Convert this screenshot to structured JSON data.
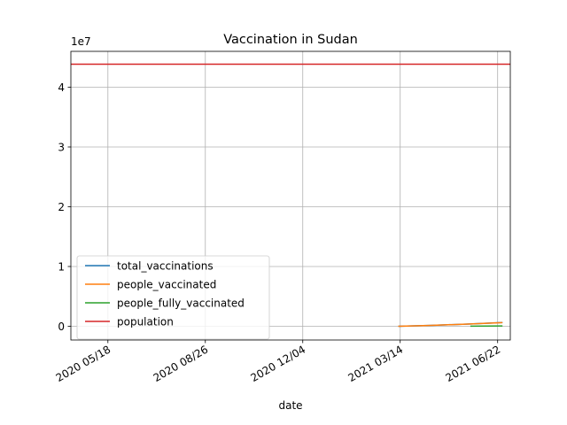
{
  "chart_data": {
    "type": "line",
    "title": "Vaccination in Sudan",
    "xlabel": "date",
    "ylabel": "",
    "y_offset_label": "1e7",
    "x_axis": "date",
    "xlim": [
      "2020-04-10",
      "2021-07-05"
    ],
    "ylim": [
      -2300000,
      46000000
    ],
    "x_ticks": [
      "2020-05-18",
      "2020-08-26",
      "2020-12-04",
      "2021-03-14",
      "2021-06-22"
    ],
    "x_tick_labels": [
      "2020 05/18",
      "2020 08/26",
      "2020 12/04",
      "2021 03/14",
      "2021 06/22"
    ],
    "y_ticks": [
      0,
      10000000,
      20000000,
      30000000,
      40000000
    ],
    "y_tick_labels": [
      "0",
      "1",
      "2",
      "3",
      "4"
    ],
    "grid": true,
    "legend_position": "lower-left",
    "series": [
      {
        "name": "total_vaccinations",
        "color": "#1f77b4",
        "points": [
          [
            "2021-03-12",
            0
          ],
          [
            "2021-04-15",
            150000
          ],
          [
            "2021-05-20",
            350000
          ],
          [
            "2021-06-27",
            630000
          ]
        ]
      },
      {
        "name": "people_vaccinated",
        "color": "#ff7f0e",
        "points": [
          [
            "2021-03-12",
            0
          ],
          [
            "2021-04-15",
            150000
          ],
          [
            "2021-05-20",
            350000
          ],
          [
            "2021-06-27",
            600000
          ]
        ]
      },
      {
        "name": "people_fully_vaccinated",
        "color": "#2ca02c",
        "points": [
          [
            "2021-05-25",
            20000
          ],
          [
            "2021-06-27",
            45000
          ]
        ]
      },
      {
        "name": "population",
        "color": "#d62728",
        "points": [
          [
            "2020-04-10",
            43850000
          ],
          [
            "2021-07-05",
            43850000
          ]
        ]
      }
    ]
  }
}
